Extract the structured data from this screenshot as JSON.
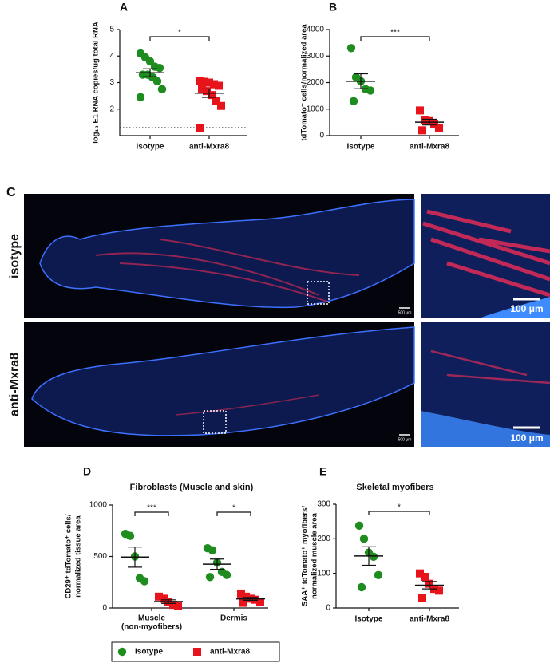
{
  "chart_data": [
    {
      "type": "dot_plot",
      "panel": "A",
      "y_label": "log₁₀ E1 RNA copies/ug total RNA",
      "ylim": [
        1,
        5
      ],
      "yticks": [
        2,
        3,
        4,
        5
      ],
      "limit_of_detection": 1.3,
      "significance": "*",
      "groups": [
        {
          "name": "Isotype",
          "color": "#1e8c1e",
          "marker": "circle",
          "values": [
            4.1,
            3.95,
            3.8,
            3.6,
            3.55,
            3.3,
            3.3,
            3.2,
            3.05,
            2.75,
            2.45
          ]
        },
        {
          "name": "anti-Mxra8",
          "color": "#e8141c",
          "marker": "square",
          "values": [
            3.06,
            3.03,
            3.0,
            2.94,
            2.88,
            2.76,
            2.68,
            2.53,
            2.32,
            2.12,
            1.3
          ]
        }
      ]
    },
    {
      "type": "dot_plot",
      "panel": "B",
      "y_label": "tdTomato⁺ cells/normalized area",
      "ylim": [
        0,
        4000
      ],
      "yticks": [
        0,
        1000,
        2000,
        3000,
        4000
      ],
      "significance": "***",
      "groups": [
        {
          "name": "Isotype",
          "color": "#1e8c1e",
          "marker": "circle",
          "values": [
            3300,
            2200,
            2050,
            1750,
            1700,
            1300
          ]
        },
        {
          "name": "anti-Mxra8",
          "color": "#e8141c",
          "marker": "square",
          "values": [
            950,
            600,
            550,
            450,
            300,
            200
          ]
        }
      ]
    },
    {
      "type": "grouped_dot_plot",
      "panel": "D",
      "title": "Fibroblasts (Muscle and skin)",
      "y_label": [
        "CD29⁺ tdTomato⁺ cells/",
        "normalized tissue area"
      ],
      "ylim": [
        0,
        1000
      ],
      "yticks": [
        0,
        500,
        1000
      ],
      "significance": [
        "***",
        "*"
      ],
      "categories": [
        [
          "Muscle",
          "(non-myofibers)"
        ],
        [
          "Dermis"
        ]
      ],
      "series": [
        {
          "name": "Isotype",
          "color": "#1e8c1e",
          "marker": "circle",
          "values": [
            [
              720,
              700,
              500,
              290,
              260
            ],
            [
              580,
              560,
              440,
              350,
              320,
              300
            ]
          ]
        },
        {
          "name": "anti-Mxra8",
          "color": "#e8141c",
          "marker": "square",
          "values": [
            [
              110,
              90,
              60,
              30,
              20
            ],
            [
              140,
              110,
              90,
              80,
              60,
              50
            ]
          ]
        }
      ]
    },
    {
      "type": "dot_plot",
      "panel": "E",
      "title": "Skeletal myofibers",
      "y_label": [
        "SAA⁺ tdTomato⁺ myofibers/",
        "normalized muscle area"
      ],
      "ylim": [
        0,
        300
      ],
      "yticks": [
        0,
        100,
        200,
        300
      ],
      "significance": "*",
      "groups": [
        {
          "name": "Isotype",
          "color": "#1e8c1e",
          "marker": "circle",
          "values": [
            238,
            200,
            160,
            148,
            95,
            60
          ]
        },
        {
          "name": "anti-Mxra8",
          "color": "#e8141c",
          "marker": "square",
          "values": [
            100,
            90,
            70,
            55,
            50,
            30
          ]
        }
      ]
    }
  ],
  "figure_c": {
    "panel": "C",
    "rows": [
      "isotype",
      "anti-Mxra8"
    ],
    "scale_bars": [
      "500 μm",
      "100 μm"
    ]
  }
}
